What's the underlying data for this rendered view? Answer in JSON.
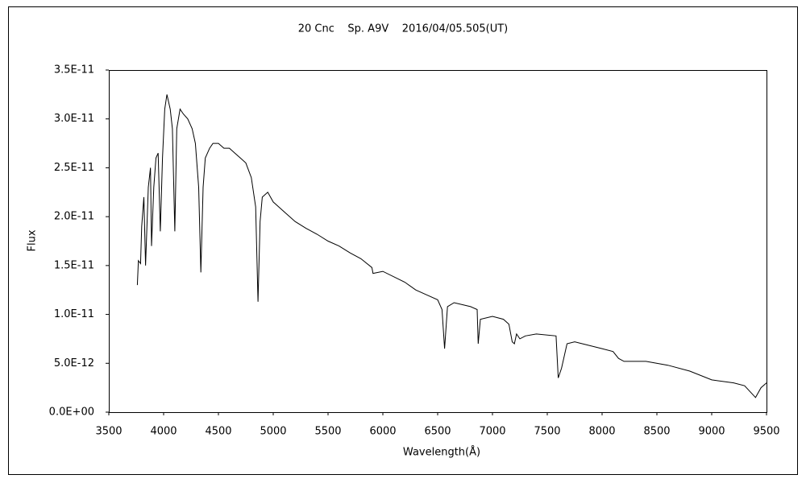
{
  "chart_data": {
    "type": "line",
    "title": "20 Cnc    Sp. A9V    2016/04/05.505(UT)",
    "x_label": "Wavelength(Å)",
    "y_label": "Flux",
    "color": "#000000",
    "x": [
      3760,
      3770,
      3790,
      3800,
      3820,
      3835,
      3860,
      3880,
      3890,
      3910,
      3930,
      3950,
      3970,
      3990,
      4010,
      4030,
      4060,
      4080,
      4102,
      4120,
      4150,
      4180,
      4220,
      4260,
      4290,
      4320,
      4340,
      4360,
      4380,
      4420,
      4450,
      4500,
      4550,
      4600,
      4650,
      4700,
      4750,
      4800,
      4840,
      4861,
      4880,
      4900,
      4950,
      5000,
      5050,
      5100,
      5200,
      5300,
      5400,
      5500,
      5600,
      5700,
      5800,
      5900,
      5910,
      6000,
      6200,
      6300,
      6400,
      6500,
      6540,
      6563,
      6590,
      6650,
      6800,
      6860,
      6870,
      6890,
      7000,
      7100,
      7150,
      7180,
      7200,
      7220,
      7250,
      7300,
      7400,
      7580,
      7600,
      7630,
      7680,
      7750,
      8000,
      8100,
      8150,
      8200,
      8400,
      8600,
      8800,
      9000,
      9200,
      9300,
      9400,
      9450,
      9500
    ],
    "values": [
      1.3e-11,
      1.55e-11,
      1.52e-11,
      1.9e-11,
      2.2e-11,
      1.5e-11,
      2.3e-11,
      2.5e-11,
      1.7e-11,
      2.3e-11,
      2.6e-11,
      2.65e-11,
      1.85e-11,
      2.6e-11,
      3.1e-11,
      3.25e-11,
      3.1e-11,
      2.9e-11,
      1.85e-11,
      2.9e-11,
      3.1e-11,
      3.05e-11,
      3e-11,
      2.9e-11,
      2.75e-11,
      2.3e-11,
      1.43e-11,
      2.3e-11,
      2.6e-11,
      2.7e-11,
      2.75e-11,
      2.75e-11,
      2.7e-11,
      2.7e-11,
      2.65e-11,
      2.6e-11,
      2.55e-11,
      2.4e-11,
      2.1e-11,
      1.13e-11,
      1.95e-11,
      2.2e-11,
      2.25e-11,
      2.15e-11,
      2.1e-11,
      2.05e-11,
      1.95e-11,
      1.88e-11,
      1.82e-11,
      1.75e-11,
      1.7e-11,
      1.63e-11,
      1.57e-11,
      1.48e-11,
      1.42e-11,
      1.44e-11,
      1.33e-11,
      1.25e-11,
      1.2e-11,
      1.15e-11,
      1.05e-11,
      6.5e-12,
      1.08e-11,
      1.12e-11,
      1.08e-11,
      1.05e-11,
      7e-12,
      9.5e-12,
      9.8e-12,
      9.5e-12,
      9e-12,
      7.2e-12,
      7e-12,
      8e-12,
      7.5e-12,
      7.8e-12,
      8e-12,
      7.8e-12,
      3.5e-12,
      4.5e-12,
      7e-12,
      7.2e-12,
      6.5e-12,
      6.2e-12,
      5.5e-12,
      5.2e-12,
      5.2e-12,
      4.8e-12,
      4.2e-12,
      3.3e-12,
      3e-12,
      2.7e-12,
      1.5e-12,
      2.5e-12,
      3e-12
    ],
    "xlim": [
      3500,
      9500
    ],
    "xticks": [
      3500,
      4000,
      4500,
      5000,
      5500,
      6000,
      6500,
      7000,
      7500,
      8000,
      8500,
      9000,
      9500
    ],
    "ylim": [
      0,
      3.5e-11
    ],
    "yticks": [
      {
        "value": 0,
        "label": "0.0E+00"
      },
      {
        "value": 5e-12,
        "label": "5.0E-12"
      },
      {
        "value": 1e-11,
        "label": "1.0E-11"
      },
      {
        "value": 1.5e-11,
        "label": "1.5E-11"
      },
      {
        "value": 2e-11,
        "label": "2.0E-11"
      },
      {
        "value": 2.5e-11,
        "label": "2.5E-11"
      },
      {
        "value": 3e-11,
        "label": "3.0E-11"
      },
      {
        "value": 3.5e-11,
        "label": "3.5E-11"
      }
    ],
    "grid": false
  }
}
